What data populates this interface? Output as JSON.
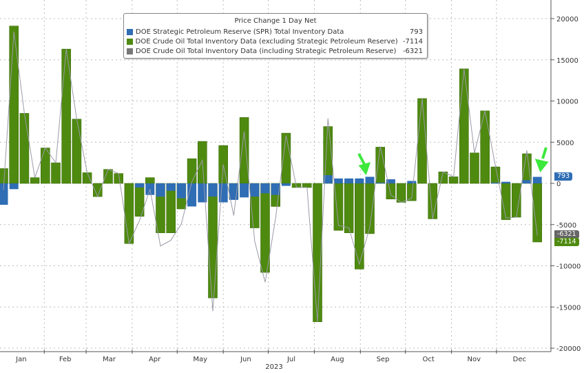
{
  "chart_data": {
    "type": "bar",
    "title": "Price Change 1 Day Net",
    "xlabel": "2023",
    "ylabel": "",
    "ylim": [
      -20000,
      20000
    ],
    "yticks": [
      "20000",
      "15000",
      "10000",
      "5000",
      "0",
      "-5000",
      "-10000",
      "-15000",
      "-20000"
    ],
    "months": [
      "Jan",
      "Feb",
      "Mar",
      "Apr",
      "May",
      "Jun",
      "Jul",
      "Aug",
      "Sep",
      "Oct",
      "Nov",
      "Dec"
    ],
    "grid": true,
    "legend_position": "top-center",
    "series": [
      {
        "name": "DOE Strategic Petroleum Reserve (SPR) Total Inventory Data",
        "last": "793",
        "color": "#2f6db5",
        "values": [
          -2600,
          -700,
          0,
          0,
          0,
          0,
          0,
          0,
          0,
          0,
          0,
          0,
          0,
          -500,
          -1400,
          -1600,
          -900,
          -1800,
          -2800,
          -2300,
          -1600,
          -2300,
          -2000,
          -1700,
          -1600,
          -1200,
          -1400,
          -300,
          0,
          0,
          0,
          1000,
          600,
          600,
          600,
          800,
          100,
          500,
          0,
          300,
          0,
          0,
          0,
          0,
          0,
          0,
          0,
          100,
          200,
          0,
          400,
          793
        ]
      },
      {
        "name": "DOE Crude Oil Total Inventory Data (excluding Strategic Petroleum Reserve)",
        "last": "-7114",
        "color": "#4f8a10",
        "values": [
          1800,
          19100,
          8500,
          700,
          4300,
          2500,
          16300,
          7800,
          1300,
          -1600,
          1700,
          1200,
          -7300,
          -4000,
          700,
          -6000,
          -6000,
          -3100,
          3000,
          5100,
          -13900,
          4600,
          -1900,
          8000,
          -5400,
          -10800,
          -2800,
          6100,
          -500,
          -500,
          -16800,
          6900,
          -5700,
          -6000,
          -10400,
          -6100,
          4400,
          -1900,
          -2300,
          -2100,
          10300,
          -4300,
          1400,
          800,
          13900,
          3700,
          8800,
          2000,
          -4400,
          -4100,
          3600,
          -7114
        ]
      },
      {
        "name": "DOE Crude Oil Total Inventory Data (including Strategic Petroleum Reserve)",
        "last": "-6321",
        "color": "#777777",
        "type": "line"
      }
    ],
    "annotations": [
      "green-arrow-sep",
      "green-arrow-dec"
    ]
  }
}
